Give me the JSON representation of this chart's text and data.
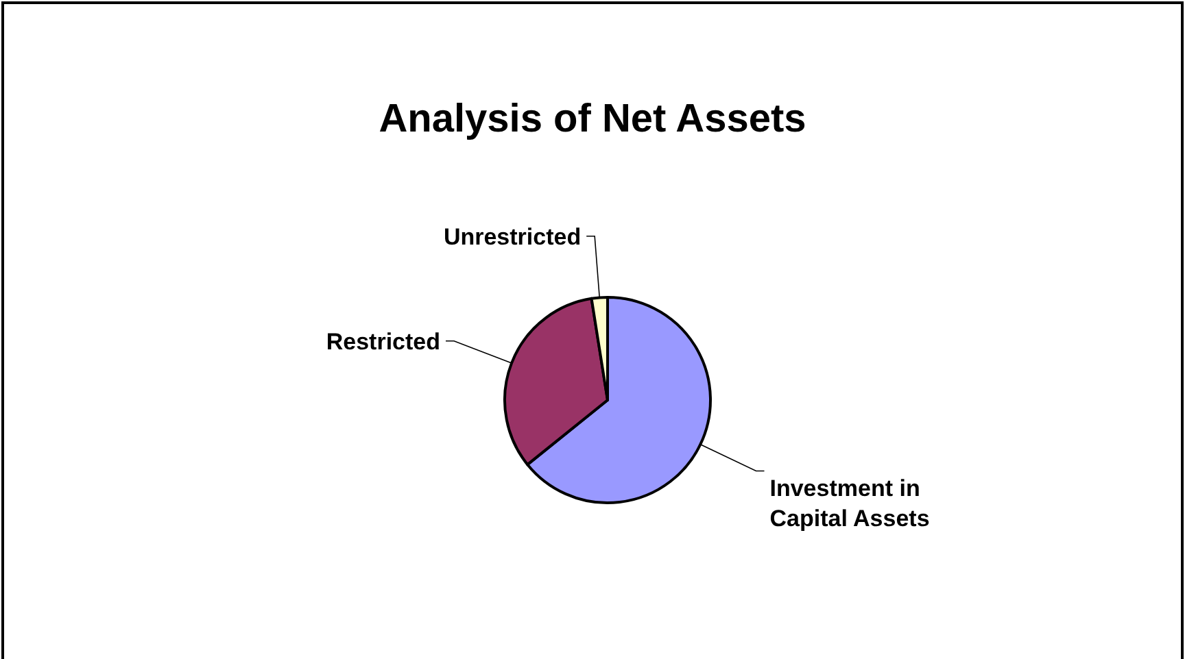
{
  "chart_data": {
    "type": "pie",
    "title": "Analysis of Net Assets",
    "categories": [
      "Investment in Capital Assets",
      "Restricted",
      "Unrestricted"
    ],
    "values": [
      64.2,
      33.3,
      2.5
    ],
    "colors": [
      "#9999ff",
      "#993366",
      "#ffffcc"
    ]
  }
}
